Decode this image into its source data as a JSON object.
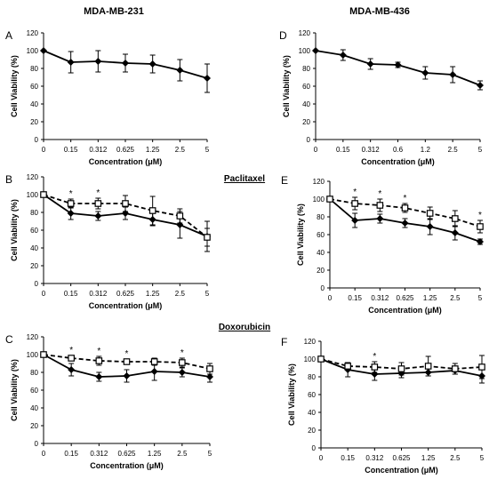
{
  "headers": {
    "left": "MDA-MB-231",
    "right": "MDA-MB-436"
  },
  "group_labels": {
    "paclitaxel": "Paclitaxel",
    "doxorubicin": "Doxorubicin"
  },
  "chart_data": [
    {
      "panel": "A",
      "type": "line",
      "title": "",
      "xlabel": "Concentration (μM)",
      "ylabel": "Cell Viability (%)",
      "ylim": [
        0,
        120
      ],
      "yticks": [
        0,
        20,
        40,
        60,
        80,
        100,
        120
      ],
      "categories": [
        "0",
        "0.15",
        "0.312",
        "0.625",
        "1.25",
        "2.5",
        "5"
      ],
      "series": [
        {
          "style": "solid-diamond",
          "values": [
            100,
            87,
            88,
            86,
            85,
            78,
            69
          ],
          "errors": [
            0,
            12,
            12,
            10,
            10,
            12,
            16
          ]
        }
      ],
      "significance": []
    },
    {
      "panel": "D",
      "type": "line",
      "title": "",
      "xlabel": "Concentration (μM)",
      "ylabel": "Cell Viability (%)",
      "ylim": [
        0,
        120
      ],
      "yticks": [
        0,
        20,
        40,
        60,
        80,
        100,
        120
      ],
      "categories": [
        "0",
        "0.15",
        "0.312",
        "0.6",
        "1.2",
        "2.5",
        "5"
      ],
      "series": [
        {
          "style": "solid-diamond",
          "values": [
            100,
            95,
            85,
            84,
            75,
            73,
            61
          ],
          "errors": [
            0,
            6,
            6,
            3,
            7,
            9,
            5
          ]
        }
      ],
      "significance": []
    },
    {
      "panel": "B",
      "type": "line",
      "title": "",
      "xlabel": "Concentration (μM)",
      "ylabel": "Cell Viability (%)",
      "ylim": [
        0,
        120
      ],
      "yticks": [
        0,
        20,
        40,
        60,
        80,
        100,
        120
      ],
      "categories": [
        "0",
        "0.15",
        "0.312",
        "0.625",
        "1.25",
        "2.5",
        "5"
      ],
      "series": [
        {
          "style": "solid-diamond",
          "values": [
            100,
            79,
            76,
            79,
            72,
            66,
            53
          ],
          "errors": [
            0,
            7,
            5,
            7,
            7,
            15,
            17
          ]
        },
        {
          "style": "dashed-square",
          "values": [
            100,
            90,
            90,
            90,
            82,
            76,
            52
          ],
          "errors": [
            0,
            5,
            6,
            9,
            16,
            8,
            10
          ]
        }
      ],
      "significance": [
        1,
        2
      ]
    },
    {
      "panel": "E",
      "type": "line",
      "title": "",
      "xlabel": "Concentration (μM)",
      "ylabel": "Cell Viability (%)",
      "ylim": [
        0,
        120
      ],
      "yticks": [
        0,
        20,
        40,
        60,
        80,
        100,
        120
      ],
      "categories": [
        "0",
        "0.15",
        "0.312",
        "0.625",
        "1.25",
        "2.5",
        "5"
      ],
      "series": [
        {
          "style": "solid-diamond",
          "values": [
            100,
            76,
            78,
            73,
            69,
            62,
            52
          ],
          "errors": [
            0,
            8,
            5,
            5,
            9,
            8,
            3
          ]
        },
        {
          "style": "dashed-square",
          "values": [
            100,
            95,
            93,
            90,
            84,
            78,
            69
          ],
          "errors": [
            0,
            7,
            7,
            5,
            7,
            9,
            7
          ]
        }
      ],
      "significance": [
        1,
        2,
        3,
        6
      ]
    },
    {
      "panel": "C",
      "type": "line",
      "title": "",
      "xlabel": "Concentration (μM)",
      "ylabel": "Cell Viability (%)",
      "ylim": [
        0,
        120
      ],
      "yticks": [
        0,
        20,
        40,
        60,
        80,
        100,
        120
      ],
      "categories": [
        "0",
        "0.15",
        "0.312",
        "0.625",
        "1.25",
        "2.5",
        "5"
      ],
      "series": [
        {
          "style": "solid-diamond",
          "values": [
            100,
            83,
            75,
            76,
            81,
            80,
            75
          ],
          "errors": [
            0,
            7,
            5,
            7,
            10,
            5,
            6
          ]
        },
        {
          "style": "dashed-square",
          "values": [
            100,
            96,
            93,
            92,
            92,
            91,
            84
          ],
          "errors": [
            0,
            3,
            5,
            3,
            4,
            5,
            6
          ]
        }
      ],
      "significance": [
        1,
        2,
        3,
        5
      ]
    },
    {
      "panel": "F",
      "type": "line",
      "title": "",
      "xlabel": "Concentration (μM)",
      "ylabel": "Cell Viability (%)",
      "ylim": [
        0,
        120
      ],
      "yticks": [
        0,
        20,
        40,
        60,
        80,
        100,
        120
      ],
      "categories": [
        "0",
        "0.15",
        "0.312",
        "0.625",
        "1.25",
        "2.5",
        "5"
      ],
      "series": [
        {
          "style": "solid-diamond",
          "values": [
            100,
            88,
            83,
            84,
            85,
            87,
            81
          ],
          "errors": [
            0,
            8,
            7,
            5,
            4,
            4,
            8
          ]
        },
        {
          "style": "dashed-square",
          "values": [
            100,
            92,
            91,
            89,
            92,
            89,
            91
          ],
          "errors": [
            0,
            4,
            6,
            7,
            11,
            6,
            13
          ]
        }
      ],
      "significance": [
        2
      ]
    }
  ]
}
